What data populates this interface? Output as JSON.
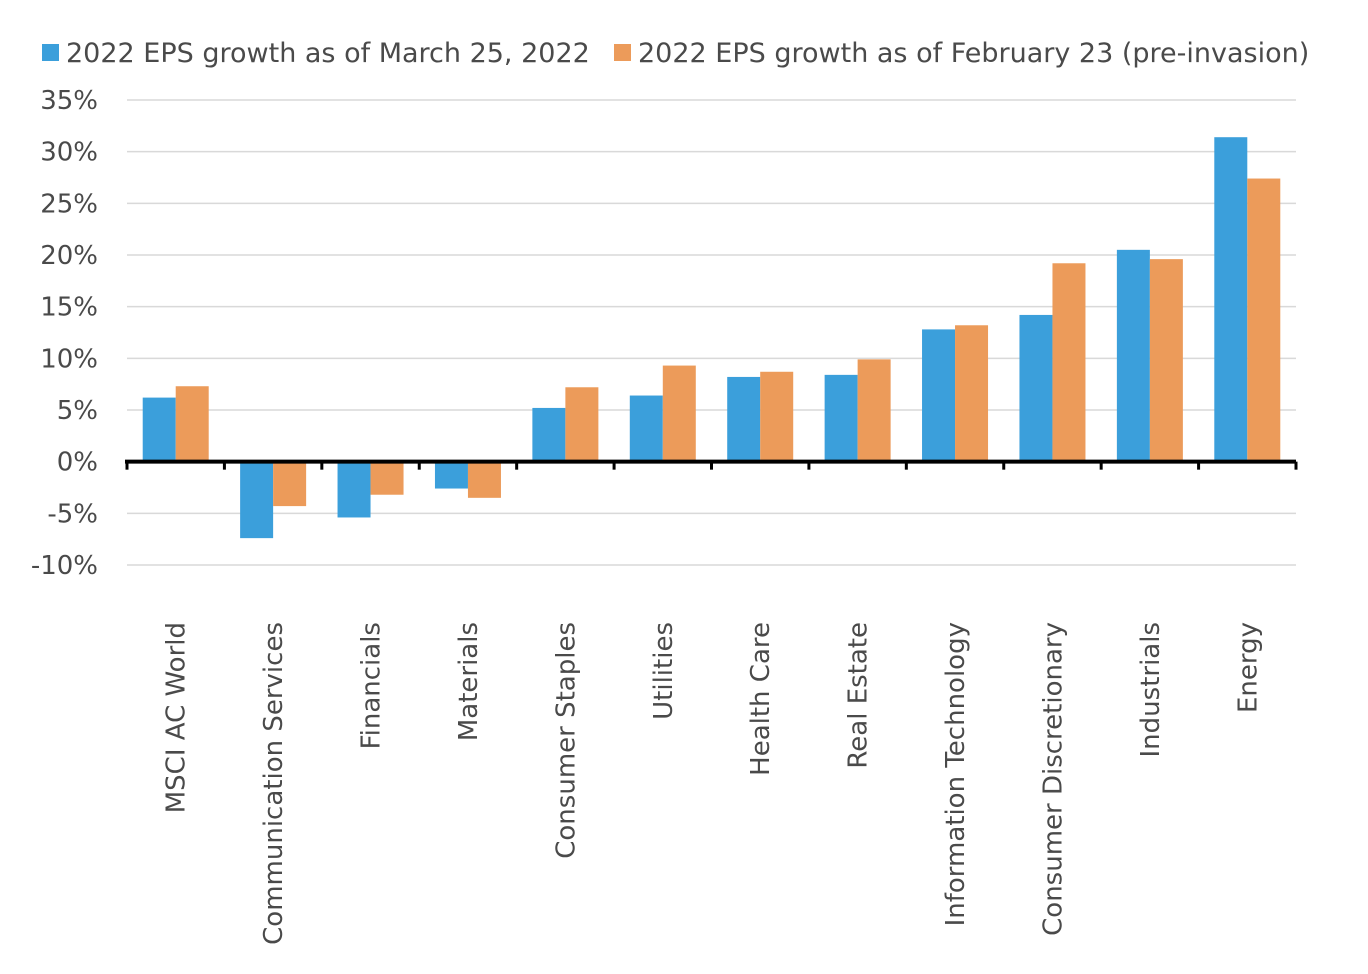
{
  "chart_data": {
    "type": "bar",
    "categories": [
      "MSCI AC World",
      "Communication Services",
      "Financials",
      "Materials",
      "Consumer Staples",
      "Utilities",
      "Health Care",
      "Real Estate",
      "Information Technology",
      "Consumer Discretionary",
      "Industrials",
      "Energy"
    ],
    "series": [
      {
        "name": "2022 EPS growth as of March 25, 2022",
        "color": "#3b9fdb",
        "values": [
          6.2,
          -7.4,
          -5.4,
          -2.6,
          5.2,
          6.4,
          8.2,
          8.4,
          12.8,
          14.2,
          20.5,
          31.4
        ]
      },
      {
        "name": "2022 EPS growth as of February 23 (pre-invasion)",
        "color": "#ec9b5a",
        "values": [
          7.3,
          -4.3,
          -3.2,
          -3.5,
          7.2,
          9.3,
          8.7,
          9.9,
          13.2,
          19.2,
          19.6,
          27.4
        ]
      }
    ],
    "yticks": [
      "35%",
      "30%",
      "25%",
      "20%",
      "15%",
      "10%",
      "5%",
      "0%",
      "-5%",
      "-10%"
    ],
    "ytick_values": [
      35,
      30,
      25,
      20,
      15,
      10,
      5,
      0,
      -5,
      -10
    ],
    "ylim": [
      -10,
      35
    ],
    "grid": true,
    "legend_position": "top"
  }
}
